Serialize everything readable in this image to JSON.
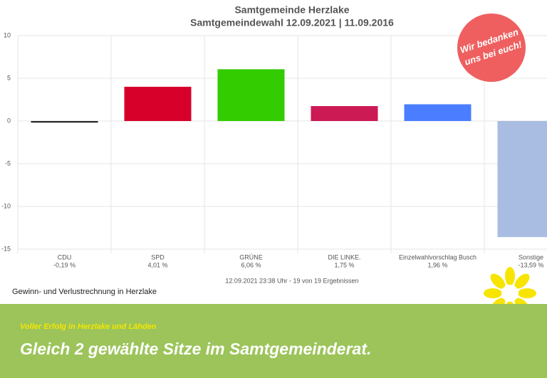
{
  "chart_data": {
    "type": "bar",
    "title": "Samtgemeinde Herzlake",
    "subtitle": "Samtgemeindewahl 12.09.2021  | 11.09.2016",
    "categories": [
      "CDU",
      "SPD",
      "GRÜNE",
      "DIE LINKE.",
      "Einzelwahlvorschlag Busch",
      "Sonstige"
    ],
    "values": [
      -0.19,
      4.01,
      6.06,
      1.75,
      1.96,
      -13.59
    ],
    "value_labels": [
      "-0,19 %",
      "4,01 %",
      "6,06 %",
      "1,75 %",
      "1,96 %",
      "-13,59 %"
    ],
    "colors": [
      "#2b2b2b",
      "#d6002a",
      "#33cc00",
      "#cc1a55",
      "#4a7dff",
      "#a9bde3"
    ],
    "ylim": [
      -15,
      10
    ],
    "yticks": [
      -15,
      -10,
      -5,
      0,
      5,
      10
    ],
    "grid": true,
    "footnote": "12.09.2021 23:38 Uhr - 19 von 19 Ergebnissen"
  },
  "caption": "Gewinn- und Verlustrechnung in Herzlake",
  "badge": {
    "lines": [
      "Wir bedanken",
      "uns bei euch!"
    ]
  },
  "banner": {
    "kicker": "Voller Erfolg in Herzlake und Lähden",
    "headline": "Gleich 2 gewählte Sitze im Samtgemeinderat."
  }
}
